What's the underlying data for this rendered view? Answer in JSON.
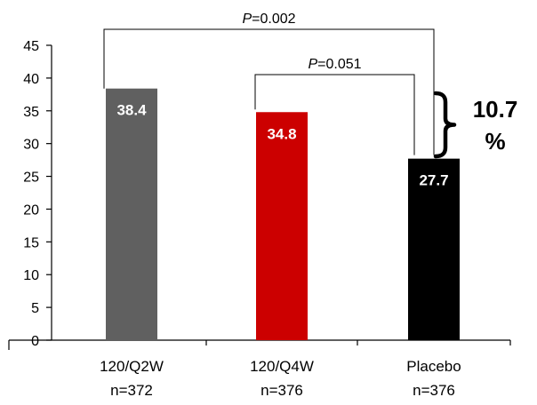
{
  "chart_data": {
    "type": "bar",
    "categories": [
      "120/Q2W",
      "120/Q4W",
      "Placebo"
    ],
    "category_n": [
      "n=372",
      "n=376",
      "n=376"
    ],
    "values": [
      38.4,
      34.8,
      27.7
    ],
    "data_labels": [
      "38.4",
      "34.8",
      "27.7"
    ],
    "bar_colors": [
      "#606060",
      "#cc0000",
      "#000000"
    ],
    "ylim": [
      0,
      45
    ],
    "yticks": [
      0,
      5,
      10,
      15,
      20,
      25,
      30,
      35,
      40,
      45
    ],
    "title": "",
    "xlabel": "",
    "ylabel": "",
    "grid": false,
    "comparisons": [
      {
        "from": "120/Q2W",
        "to": "Placebo",
        "p_prefix": "P",
        "p_suffix": "=0.002"
      },
      {
        "from": "120/Q4W",
        "to": "Placebo",
        "p_prefix": "P",
        "p_suffix": "=0.051"
      }
    ],
    "difference_label": {
      "line1": "10.7",
      "line2": "%"
    }
  }
}
